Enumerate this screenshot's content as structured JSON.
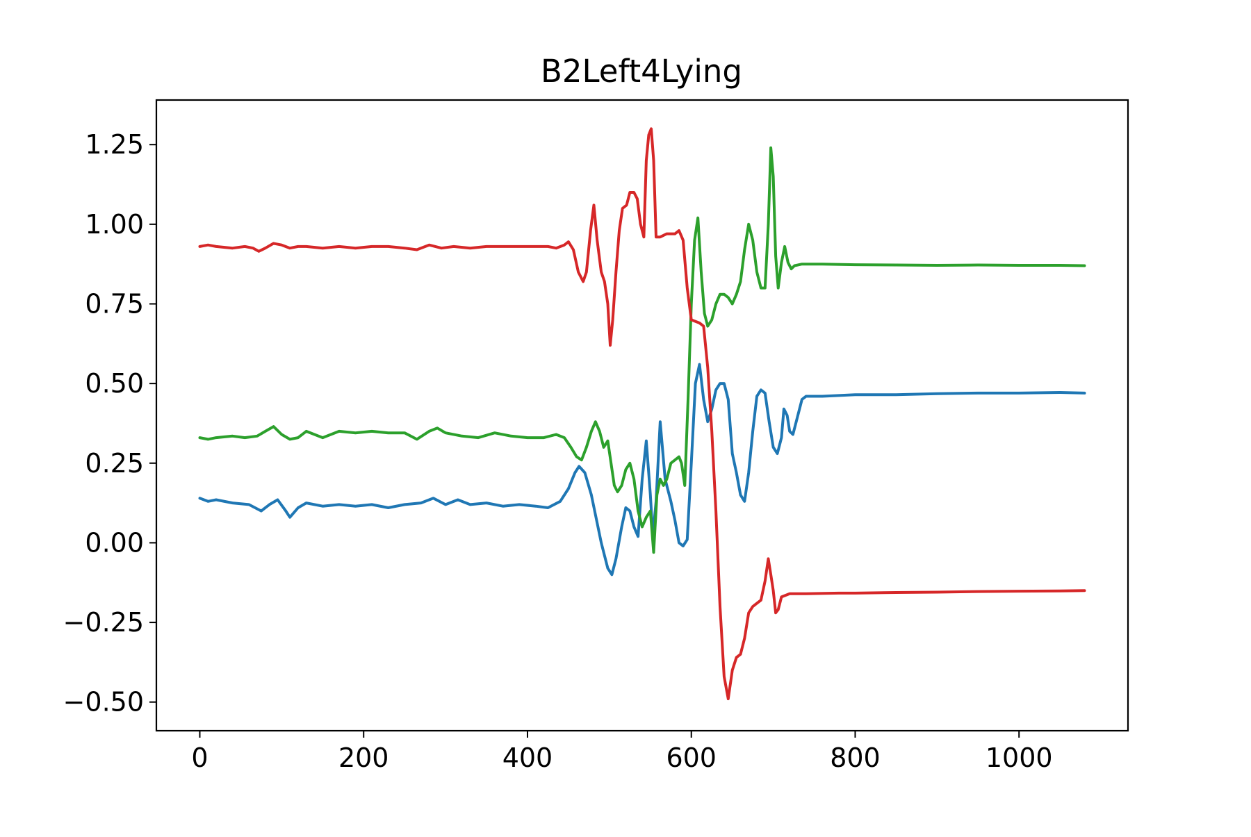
{
  "chart_data": {
    "type": "line",
    "title": "B2Left4Lying",
    "xlabel": "",
    "ylabel": "",
    "xlim": [
      -53,
      1133
    ],
    "ylim": [
      -0.59,
      1.39
    ],
    "grid": false,
    "xticks": [
      0,
      200,
      400,
      600,
      800,
      1000
    ],
    "xtick_labels": [
      "0",
      "200",
      "400",
      "600",
      "800",
      "1000"
    ],
    "yticks": [
      -0.5,
      -0.25,
      0.0,
      0.25,
      0.5,
      0.75,
      1.0,
      1.25
    ],
    "ytick_labels": [
      "−0.50",
      "−0.25",
      "0.00",
      "0.25",
      "0.50",
      "0.75",
      "1.00",
      "1.25"
    ],
    "series": [
      {
        "color": "#1f77b4",
        "points": [
          [
            0,
            0.14
          ],
          [
            10,
            0.13
          ],
          [
            20,
            0.135
          ],
          [
            40,
            0.125
          ],
          [
            60,
            0.12
          ],
          [
            75,
            0.1
          ],
          [
            85,
            0.12
          ],
          [
            95,
            0.135
          ],
          [
            105,
            0.1
          ],
          [
            110,
            0.08
          ],
          [
            120,
            0.11
          ],
          [
            130,
            0.125
          ],
          [
            150,
            0.115
          ],
          [
            170,
            0.12
          ],
          [
            190,
            0.115
          ],
          [
            210,
            0.12
          ],
          [
            230,
            0.11
          ],
          [
            250,
            0.12
          ],
          [
            270,
            0.125
          ],
          [
            285,
            0.14
          ],
          [
            300,
            0.12
          ],
          [
            315,
            0.135
          ],
          [
            330,
            0.12
          ],
          [
            350,
            0.125
          ],
          [
            370,
            0.115
          ],
          [
            390,
            0.12
          ],
          [
            410,
            0.115
          ],
          [
            425,
            0.11
          ],
          [
            440,
            0.13
          ],
          [
            450,
            0.17
          ],
          [
            458,
            0.22
          ],
          [
            463,
            0.24
          ],
          [
            470,
            0.22
          ],
          [
            478,
            0.15
          ],
          [
            490,
            0.0
          ],
          [
            498,
            -0.08
          ],
          [
            503,
            -0.1
          ],
          [
            508,
            -0.05
          ],
          [
            515,
            0.05
          ],
          [
            520,
            0.11
          ],
          [
            525,
            0.1
          ],
          [
            530,
            0.05
          ],
          [
            535,
            0.02
          ],
          [
            540,
            0.2
          ],
          [
            545,
            0.32
          ],
          [
            550,
            0.15
          ],
          [
            553,
            0.02
          ],
          [
            557,
            0.13
          ],
          [
            562,
            0.38
          ],
          [
            568,
            0.2
          ],
          [
            575,
            0.13
          ],
          [
            580,
            0.07
          ],
          [
            585,
            0.0
          ],
          [
            590,
            -0.01
          ],
          [
            595,
            0.01
          ],
          [
            600,
            0.25
          ],
          [
            605,
            0.5
          ],
          [
            610,
            0.56
          ],
          [
            615,
            0.45
          ],
          [
            620,
            0.38
          ],
          [
            625,
            0.42
          ],
          [
            630,
            0.48
          ],
          [
            635,
            0.5
          ],
          [
            640,
            0.5
          ],
          [
            645,
            0.45
          ],
          [
            650,
            0.28
          ],
          [
            655,
            0.22
          ],
          [
            660,
            0.15
          ],
          [
            665,
            0.13
          ],
          [
            670,
            0.22
          ],
          [
            675,
            0.35
          ],
          [
            680,
            0.46
          ],
          [
            685,
            0.48
          ],
          [
            690,
            0.47
          ],
          [
            695,
            0.38
          ],
          [
            700,
            0.3
          ],
          [
            705,
            0.28
          ],
          [
            710,
            0.33
          ],
          [
            713,
            0.42
          ],
          [
            717,
            0.4
          ],
          [
            720,
            0.35
          ],
          [
            724,
            0.34
          ],
          [
            730,
            0.4
          ],
          [
            735,
            0.45
          ],
          [
            740,
            0.46
          ],
          [
            760,
            0.46
          ],
          [
            800,
            0.465
          ],
          [
            850,
            0.465
          ],
          [
            900,
            0.468
          ],
          [
            950,
            0.47
          ],
          [
            1000,
            0.47
          ],
          [
            1050,
            0.472
          ],
          [
            1080,
            0.47
          ]
        ]
      },
      {
        "color": "#2ca02c",
        "points": [
          [
            0,
            0.33
          ],
          [
            10,
            0.325
          ],
          [
            20,
            0.33
          ],
          [
            40,
            0.335
          ],
          [
            55,
            0.33
          ],
          [
            70,
            0.335
          ],
          [
            80,
            0.35
          ],
          [
            90,
            0.365
          ],
          [
            100,
            0.34
          ],
          [
            110,
            0.325
          ],
          [
            120,
            0.33
          ],
          [
            130,
            0.35
          ],
          [
            150,
            0.33
          ],
          [
            170,
            0.35
          ],
          [
            190,
            0.345
          ],
          [
            210,
            0.35
          ],
          [
            230,
            0.345
          ],
          [
            250,
            0.345
          ],
          [
            265,
            0.325
          ],
          [
            280,
            0.35
          ],
          [
            290,
            0.36
          ],
          [
            300,
            0.345
          ],
          [
            320,
            0.335
          ],
          [
            340,
            0.33
          ],
          [
            360,
            0.345
          ],
          [
            380,
            0.335
          ],
          [
            400,
            0.33
          ],
          [
            420,
            0.33
          ],
          [
            435,
            0.34
          ],
          [
            445,
            0.33
          ],
          [
            453,
            0.3
          ],
          [
            460,
            0.27
          ],
          [
            466,
            0.26
          ],
          [
            472,
            0.3
          ],
          [
            478,
            0.35
          ],
          [
            483,
            0.38
          ],
          [
            488,
            0.35
          ],
          [
            493,
            0.3
          ],
          [
            498,
            0.32
          ],
          [
            502,
            0.25
          ],
          [
            506,
            0.18
          ],
          [
            510,
            0.16
          ],
          [
            515,
            0.18
          ],
          [
            520,
            0.23
          ],
          [
            525,
            0.25
          ],
          [
            530,
            0.2
          ],
          [
            535,
            0.1
          ],
          [
            540,
            0.05
          ],
          [
            545,
            0.08
          ],
          [
            550,
            0.1
          ],
          [
            554,
            -0.03
          ],
          [
            558,
            0.15
          ],
          [
            562,
            0.2
          ],
          [
            566,
            0.18
          ],
          [
            570,
            0.2
          ],
          [
            575,
            0.25
          ],
          [
            580,
            0.26
          ],
          [
            585,
            0.27
          ],
          [
            588,
            0.25
          ],
          [
            592,
            0.18
          ],
          [
            596,
            0.45
          ],
          [
            600,
            0.75
          ],
          [
            604,
            0.95
          ],
          [
            608,
            1.02
          ],
          [
            612,
            0.85
          ],
          [
            616,
            0.72
          ],
          [
            620,
            0.68
          ],
          [
            625,
            0.7
          ],
          [
            630,
            0.75
          ],
          [
            635,
            0.78
          ],
          [
            640,
            0.78
          ],
          [
            645,
            0.77
          ],
          [
            650,
            0.75
          ],
          [
            655,
            0.78
          ],
          [
            660,
            0.82
          ],
          [
            665,
            0.92
          ],
          [
            670,
            1.0
          ],
          [
            675,
            0.95
          ],
          [
            680,
            0.85
          ],
          [
            685,
            0.8
          ],
          [
            690,
            0.8
          ],
          [
            694,
            1.0
          ],
          [
            697,
            1.24
          ],
          [
            700,
            1.15
          ],
          [
            703,
            0.9
          ],
          [
            706,
            0.8
          ],
          [
            710,
            0.88
          ],
          [
            714,
            0.93
          ],
          [
            718,
            0.88
          ],
          [
            722,
            0.86
          ],
          [
            726,
            0.87
          ],
          [
            735,
            0.875
          ],
          [
            760,
            0.875
          ],
          [
            800,
            0.873
          ],
          [
            850,
            0.872
          ],
          [
            900,
            0.871
          ],
          [
            950,
            0.872
          ],
          [
            1000,
            0.871
          ],
          [
            1050,
            0.871
          ],
          [
            1080,
            0.87
          ]
        ]
      },
      {
        "color": "#d62728",
        "points": [
          [
            0,
            0.93
          ],
          [
            10,
            0.935
          ],
          [
            20,
            0.93
          ],
          [
            40,
            0.925
          ],
          [
            55,
            0.93
          ],
          [
            65,
            0.925
          ],
          [
            72,
            0.915
          ],
          [
            80,
            0.925
          ],
          [
            90,
            0.94
          ],
          [
            100,
            0.935
          ],
          [
            110,
            0.925
          ],
          [
            120,
            0.93
          ],
          [
            130,
            0.93
          ],
          [
            150,
            0.925
          ],
          [
            170,
            0.93
          ],
          [
            190,
            0.925
          ],
          [
            210,
            0.93
          ],
          [
            230,
            0.93
          ],
          [
            250,
            0.925
          ],
          [
            265,
            0.92
          ],
          [
            280,
            0.935
          ],
          [
            295,
            0.925
          ],
          [
            310,
            0.93
          ],
          [
            330,
            0.925
          ],
          [
            350,
            0.93
          ],
          [
            370,
            0.93
          ],
          [
            390,
            0.93
          ],
          [
            410,
            0.93
          ],
          [
            425,
            0.93
          ],
          [
            435,
            0.925
          ],
          [
            445,
            0.935
          ],
          [
            450,
            0.945
          ],
          [
            456,
            0.92
          ],
          [
            462,
            0.85
          ],
          [
            468,
            0.82
          ],
          [
            472,
            0.85
          ],
          [
            477,
            0.98
          ],
          [
            481,
            1.06
          ],
          [
            485,
            0.95
          ],
          [
            490,
            0.85
          ],
          [
            494,
            0.82
          ],
          [
            498,
            0.75
          ],
          [
            501,
            0.62
          ],
          [
            504,
            0.7
          ],
          [
            508,
            0.85
          ],
          [
            512,
            0.98
          ],
          [
            516,
            1.05
          ],
          [
            521,
            1.06
          ],
          [
            525,
            1.1
          ],
          [
            530,
            1.1
          ],
          [
            534,
            1.08
          ],
          [
            538,
            1.0
          ],
          [
            542,
            0.96
          ],
          [
            545,
            1.2
          ],
          [
            548,
            1.28
          ],
          [
            551,
            1.3
          ],
          [
            554,
            1.2
          ],
          [
            557,
            0.96
          ],
          [
            562,
            0.96
          ],
          [
            570,
            0.97
          ],
          [
            575,
            0.97
          ],
          [
            580,
            0.97
          ],
          [
            585,
            0.98
          ],
          [
            590,
            0.95
          ],
          [
            595,
            0.8
          ],
          [
            600,
            0.7
          ],
          [
            610,
            0.69
          ],
          [
            615,
            0.68
          ],
          [
            620,
            0.55
          ],
          [
            625,
            0.35
          ],
          [
            630,
            0.1
          ],
          [
            635,
            -0.2
          ],
          [
            640,
            -0.42
          ],
          [
            645,
            -0.49
          ],
          [
            650,
            -0.4
          ],
          [
            655,
            -0.36
          ],
          [
            660,
            -0.35
          ],
          [
            665,
            -0.3
          ],
          [
            670,
            -0.22
          ],
          [
            675,
            -0.2
          ],
          [
            680,
            -0.19
          ],
          [
            685,
            -0.18
          ],
          [
            690,
            -0.12
          ],
          [
            694,
            -0.05
          ],
          [
            697,
            -0.1
          ],
          [
            700,
            -0.15
          ],
          [
            703,
            -0.22
          ],
          [
            706,
            -0.21
          ],
          [
            710,
            -0.17
          ],
          [
            720,
            -0.16
          ],
          [
            740,
            -0.16
          ],
          [
            780,
            -0.158
          ],
          [
            800,
            -0.158
          ],
          [
            850,
            -0.156
          ],
          [
            900,
            -0.155
          ],
          [
            950,
            -0.153
          ],
          [
            1000,
            -0.152
          ],
          [
            1050,
            -0.151
          ],
          [
            1080,
            -0.15
          ]
        ]
      }
    ]
  }
}
